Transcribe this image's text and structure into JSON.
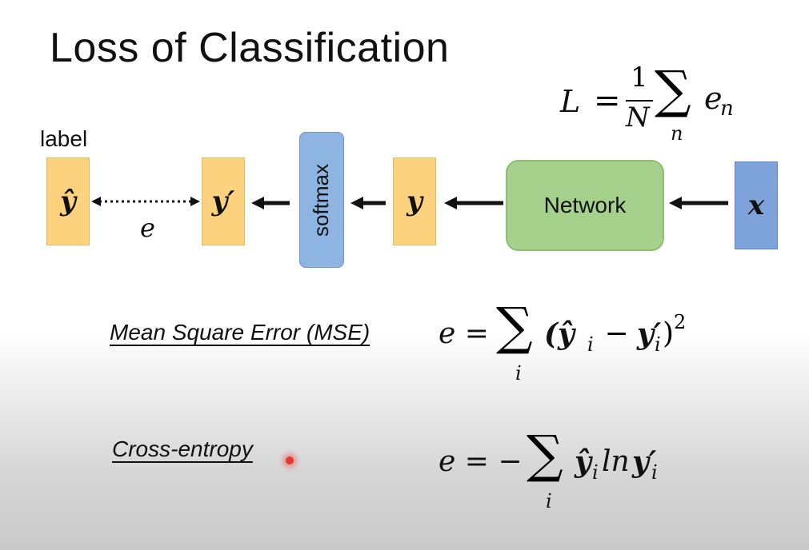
{
  "slide": {
    "title": "Loss of Classification"
  },
  "formula_L": {
    "lhs": "L",
    "eq": "=",
    "num": "1",
    "den": "N",
    "sum_sub": "n",
    "term": "e",
    "term_sub": "n"
  },
  "diagram": {
    "label": "label",
    "y_hat": "ŷ",
    "y_prime": "y′",
    "e": "e",
    "softmax": "softmax",
    "y": "y",
    "network": "Network",
    "x": "x"
  },
  "mse": {
    "name": "Mean Square Error (MSE)",
    "lhs": "e =",
    "sum_sub": "i",
    "body": "(ŷ",
    "minus": " − ",
    "yp": "y′",
    "close": ")",
    "sub_i1": "i",
    "sub_i2": "i",
    "power": "2"
  },
  "cross_entropy": {
    "name": "Cross-entropy",
    "lhs": "e = −",
    "sum_sub": "i",
    "y_hat": "ŷ",
    "sub_i1": "i",
    "ln": "ln",
    "yp": "y′",
    "sub_i2": "i"
  },
  "colors": {
    "orange_box": "#fcd27e",
    "blue_box": "#7da3da",
    "softmax_box": "#8eb4e2",
    "network_box": "#a6d18c",
    "pointer": "#e23b2e"
  }
}
